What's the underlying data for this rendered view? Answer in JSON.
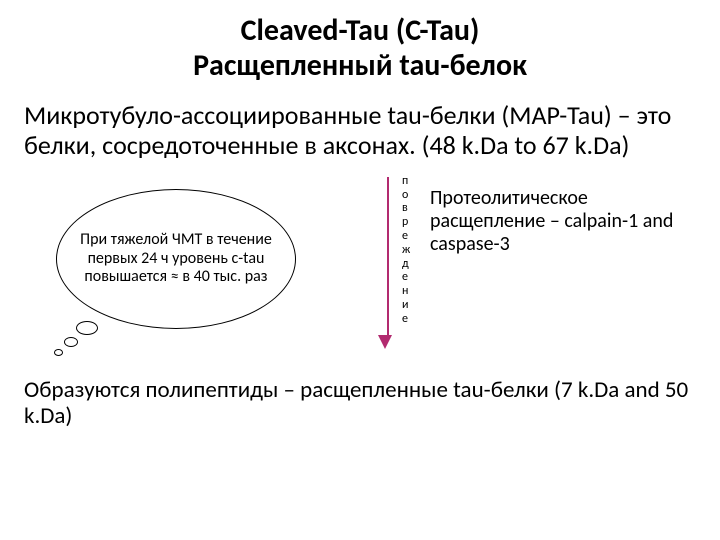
{
  "title_line1": "Cleaved-Tau (C-Tau)",
  "title_line2": "Расщепленный tau-белок",
  "intro": "Микротубуло-ассоциированные tau-белки (MAP-Tau) – это белки, сосредоточенные в аксонах. (48 k.Da to 67 k.Da)",
  "bubble": "При тяжелой ЧМТ в течение первых 24 ч уровень c-tau повышается ≈ в 40 тыс. раз",
  "vertical_label_chars": [
    "п",
    "о",
    "в",
    "р",
    "е",
    "ж",
    "д",
    "е",
    "н",
    "и",
    "е"
  ],
  "right_text": "Протеолитическое расщепление – calpain-1 and caspase-3",
  "bottom": "Образуются полипептиды – расщепленные tau-белки (7 k.Da and 50 k.Da)",
  "arrow_color": "#b22a6f",
  "text_color": "#000000",
  "background": "#ffffff"
}
